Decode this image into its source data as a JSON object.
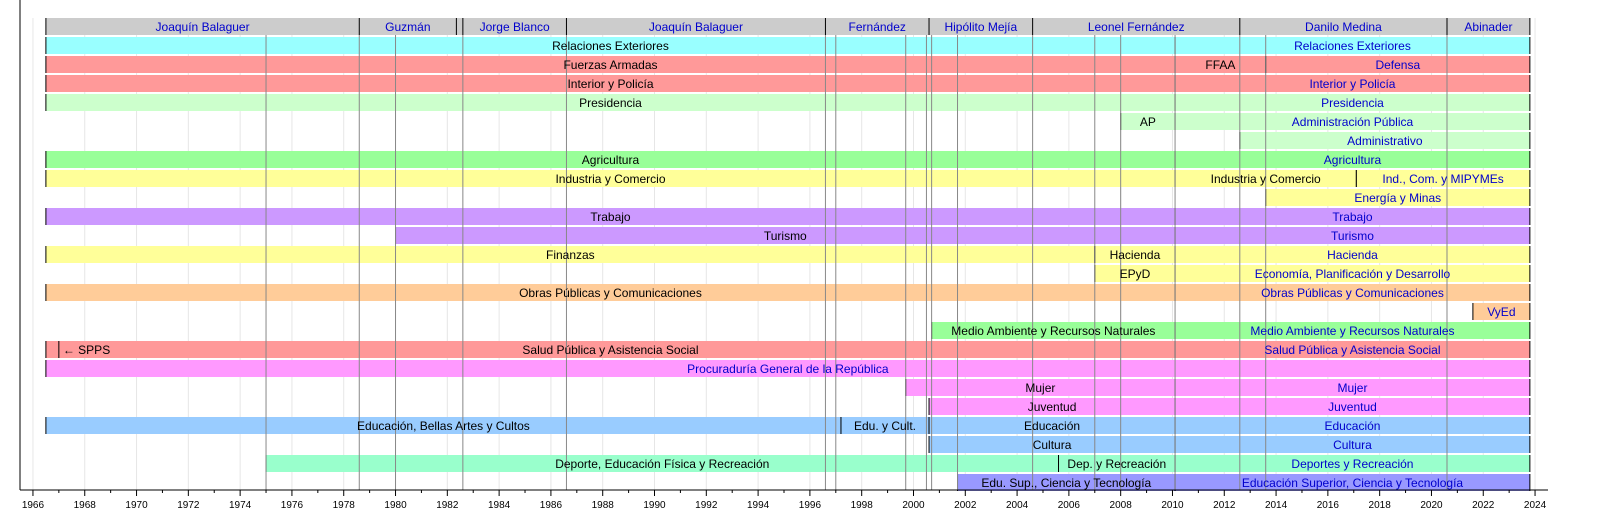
{
  "chart_data": {
    "type": "timeline",
    "x_axis": {
      "range": [
        1965.5,
        2024.5
      ],
      "ticks": [
        1966,
        1968,
        1970,
        1972,
        1974,
        1976,
        1978,
        1980,
        1982,
        1984,
        1986,
        1988,
        1990,
        1992,
        1994,
        1996,
        1998,
        2000,
        2002,
        2004,
        2006,
        2008,
        2010,
        2012,
        2014,
        2016,
        2018,
        2020,
        2022,
        2024
      ]
    },
    "presidents": [
      {
        "name": "Joaquín Balaguer",
        "start": 1966.5,
        "end": 1978.6
      },
      {
        "name": "Guzmán",
        "start": 1978.6,
        "end": 1982.35
      },
      {
        "name": "",
        "start": 1982.35,
        "end": 1982.6
      },
      {
        "name": "Jorge Blanco",
        "start": 1982.6,
        "end": 1986.6
      },
      {
        "name": "Joaquín Balaguer",
        "start": 1986.6,
        "end": 1996.6
      },
      {
        "name": "Fernández",
        "start": 1996.6,
        "end": 2000.6
      },
      {
        "name": "Hipólito Mejía",
        "start": 2000.6,
        "end": 2004.6
      },
      {
        "name": "Leonel Fernández",
        "start": 2004.6,
        "end": 2012.6
      },
      {
        "name": "Danilo Medina",
        "start": 2012.6,
        "end": 2020.6
      },
      {
        "name": "Abinader",
        "start": 2020.6,
        "end": 2023.8
      }
    ],
    "colors": {
      "president_band": "#cccccc",
      "cyan": "#99ffff",
      "red": "#ff9999",
      "lightgreen": "#ccffcc",
      "green": "#99ff99",
      "yellow": "#ffff99",
      "purple": "#cc99ff",
      "orange": "#ffcc99",
      "seafoam": "#99ffcc",
      "pink": "#ff99ff",
      "blue": "#99ccff",
      "slate": "#9999ff",
      "label_blue": "#0000cc",
      "label_black": "#000000"
    },
    "rows": [
      {
        "label": "Relaciones Exteriores",
        "segments": [
          {
            "start": 1966.5,
            "end": 2010.1,
            "label": "Relaciones Exteriores",
            "color": "cyan"
          },
          {
            "start": 2010.1,
            "end": 2023.8,
            "label": "Relaciones Exteriores",
            "color": "cyan",
            "link": true
          }
        ]
      },
      {
        "label": "Fuerzas Armadas",
        "segments": [
          {
            "start": 1966.5,
            "end": 2010.1,
            "label": "Fuerzas Armadas",
            "color": "red"
          },
          {
            "start": 2010.1,
            "end": 2013.6,
            "label": "FFAA",
            "color": "red"
          },
          {
            "start": 2013.6,
            "end": 2023.8,
            "label": "Defensa",
            "color": "red",
            "link": true
          }
        ]
      },
      {
        "label": "Interior y Policía",
        "segments": [
          {
            "start": 1966.5,
            "end": 2010.1,
            "label": "Interior y Policía",
            "color": "red"
          },
          {
            "start": 2010.1,
            "end": 2023.8,
            "label": "Interior y Policía",
            "color": "red",
            "link": true
          }
        ]
      },
      {
        "label": "Presidencia",
        "segments": [
          {
            "start": 1966.5,
            "end": 2010.1,
            "label": "Presidencia",
            "color": "lightgreen"
          },
          {
            "start": 2010.1,
            "end": 2023.8,
            "label": "Presidencia",
            "color": "lightgreen",
            "link": true
          }
        ]
      },
      {
        "label": "Administración Pública",
        "segments": [
          {
            "start": 2008.0,
            "end": 2010.1,
            "label": "AP",
            "color": "lightgreen"
          },
          {
            "start": 2010.1,
            "end": 2023.8,
            "label": "Administración Pública",
            "color": "lightgreen",
            "link": true
          }
        ]
      },
      {
        "label": "Administrativo",
        "segments": [
          {
            "start": 2012.6,
            "end": 2023.8,
            "label": "Administrativo",
            "color": "lightgreen",
            "link": true
          }
        ]
      },
      {
        "label": "Agricultura",
        "segments": [
          {
            "start": 1966.5,
            "end": 2010.1,
            "label": "Agricultura",
            "color": "green"
          },
          {
            "start": 2010.1,
            "end": 2023.8,
            "label": "Agricultura",
            "color": "green",
            "link": true
          }
        ]
      },
      {
        "label": "Industria y Comercio",
        "segments": [
          {
            "start": 1966.5,
            "end": 2010.1,
            "label": "Industria y Comercio",
            "color": "yellow"
          },
          {
            "start": 2010.1,
            "end": 2017.1,
            "label": "Industria y Comercio",
            "color": "yellow"
          },
          {
            "start": 2017.1,
            "end": 2023.8,
            "label": "Ind., Com. y MIPYMEs",
            "color": "yellow",
            "link": true
          }
        ]
      },
      {
        "label": "Energía y Minas",
        "segments": [
          {
            "start": 2013.6,
            "end": 2023.8,
            "label": "Energía y Minas",
            "color": "yellow",
            "link": true
          }
        ]
      },
      {
        "label": "Trabajo",
        "segments": [
          {
            "start": 1966.5,
            "end": 2010.1,
            "label": "Trabajo",
            "color": "purple"
          },
          {
            "start": 2010.1,
            "end": 2023.8,
            "label": "Trabajo",
            "color": "purple",
            "link": true
          }
        ]
      },
      {
        "label": "Turismo",
        "segments": [
          {
            "start": 1980.0,
            "end": 2010.1,
            "label": "Turismo",
            "color": "purple"
          },
          {
            "start": 2010.1,
            "end": 2023.8,
            "label": "Turismo",
            "color": "purple",
            "link": true
          }
        ]
      },
      {
        "label": "Hacienda",
        "segments": [
          {
            "start": 1966.5,
            "end": 2007.0,
            "label": "Finanzas",
            "color": "yellow"
          },
          {
            "start": 2007.0,
            "end": 2010.1,
            "label": "Hacienda",
            "color": "yellow"
          },
          {
            "start": 2010.1,
            "end": 2023.8,
            "label": "Hacienda",
            "color": "yellow",
            "link": true
          }
        ]
      },
      {
        "label": "Economía, Planificación y Desarrollo",
        "segments": [
          {
            "start": 2007.0,
            "end": 2010.1,
            "label": "EPyD",
            "color": "yellow"
          },
          {
            "start": 2010.1,
            "end": 2023.8,
            "label": "Economía, Planificación y Desarrollo",
            "color": "yellow",
            "link": true
          }
        ]
      },
      {
        "label": "Obras Públicas y Comunicaciones",
        "segments": [
          {
            "start": 1966.5,
            "end": 2010.1,
            "label": "Obras Públicas y Comunicaciones",
            "color": "orange"
          },
          {
            "start": 2010.1,
            "end": 2023.8,
            "label": "Obras Públicas y Comunicaciones",
            "color": "orange",
            "link": true
          }
        ]
      },
      {
        "label": "VyEd",
        "segments": [
          {
            "start": 2021.6,
            "end": 2023.8,
            "label": "VyEd",
            "color": "orange",
            "link": true
          }
        ]
      },
      {
        "label": "Medio Ambiente y Recursos Naturales",
        "segments": [
          {
            "start": 2000.7,
            "end": 2010.1,
            "label": "Medio Ambiente y Recursos Naturales",
            "color": "green"
          },
          {
            "start": 2010.1,
            "end": 2023.8,
            "label": "Medio Ambiente y Recursos Naturales",
            "color": "green",
            "link": true
          }
        ]
      },
      {
        "label": "Salud Pública y Asistencia Social",
        "segments": [
          {
            "start": 1966.5,
            "end": 2010.1,
            "label": "Salud Pública y Asistencia Social",
            "color": "red",
            "start_mark": 1967.0,
            "start_label": "← SPPS"
          },
          {
            "start": 2010.1,
            "end": 2023.8,
            "label": "Salud Pública y Asistencia Social",
            "color": "red",
            "link": true
          }
        ]
      },
      {
        "label": "Procuraduría General de la República",
        "segments": [
          {
            "start": 1966.5,
            "end": 2023.8,
            "label": "Procuraduría General de la República",
            "color": "pink",
            "link": true
          }
        ]
      },
      {
        "label": "Mujer",
        "segments": [
          {
            "start": 1999.7,
            "end": 2010.1,
            "label": "Mujer",
            "color": "pink"
          },
          {
            "start": 2010.1,
            "end": 2023.8,
            "label": "Mujer",
            "color": "pink",
            "link": true
          }
        ]
      },
      {
        "label": "Juventud",
        "segments": [
          {
            "start": 2000.6,
            "end": 2010.1,
            "label": "Juventud",
            "color": "pink"
          },
          {
            "start": 2010.1,
            "end": 2023.8,
            "label": "Juventud",
            "color": "pink",
            "link": true
          }
        ]
      },
      {
        "label": "Educación",
        "segments": [
          {
            "start": 1966.5,
            "end": 1997.2,
            "label": "Educación, Bellas Artes y Cultos",
            "color": "blue"
          },
          {
            "start": 1997.2,
            "end": 2000.6,
            "label": "Edu. y Cult.",
            "color": "blue"
          },
          {
            "start": 2000.6,
            "end": 2010.1,
            "label": "Educación",
            "color": "blue"
          },
          {
            "start": 2010.1,
            "end": 2023.8,
            "label": "Educación",
            "color": "blue",
            "link": true
          }
        ]
      },
      {
        "label": "Cultura",
        "segments": [
          {
            "start": 2000.6,
            "end": 2010.1,
            "label": "Cultura",
            "color": "blue"
          },
          {
            "start": 2010.1,
            "end": 2023.8,
            "label": "Cultura",
            "color": "blue",
            "link": true
          }
        ]
      },
      {
        "label": "Deportes y Recreación",
        "segments": [
          {
            "start": 1975.0,
            "end": 2005.6,
            "label": "Deporte, Educación Física y Recreación",
            "color": "seafoam"
          },
          {
            "start": 2005.6,
            "end": 2010.1,
            "label": "Dep. y Recreación",
            "color": "seafoam"
          },
          {
            "start": 2010.1,
            "end": 2023.8,
            "label": "Deportes y Recreación",
            "color": "seafoam",
            "link": true
          }
        ]
      },
      {
        "label": "Educación Superior, Ciencia y Tecnología",
        "segments": [
          {
            "start": 2001.7,
            "end": 2010.1,
            "label": "Edu. Sup., Ciencia y Tecnología",
            "color": "slate"
          },
          {
            "start": 2010.1,
            "end": 2023.8,
            "label": "Educación Superior, Ciencia y Tecnología",
            "color": "slate",
            "link": true
          }
        ]
      }
    ],
    "event_lines": [
      1975.0,
      1978.6,
      1980.0,
      1982.6,
      1986.6,
      1996.6,
      1997.0,
      1999.7,
      2000.5,
      2000.7,
      2001.7,
      2004.6,
      2007.0,
      2008.0,
      2010.1,
      2012.6,
      2013.6,
      2020.6
    ]
  }
}
